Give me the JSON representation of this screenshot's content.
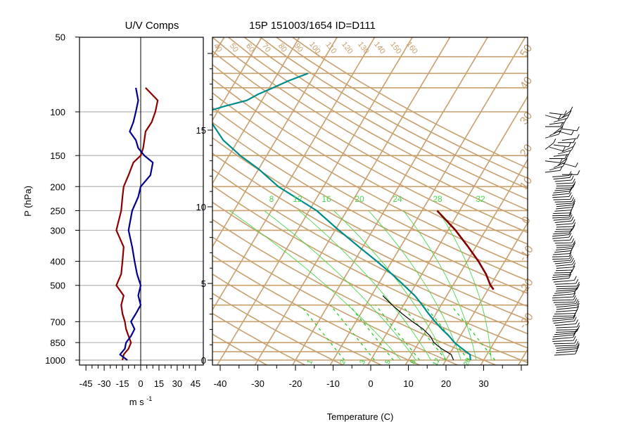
{
  "left_panel": {
    "title": "U/V Comps",
    "ylabel": "P (hPa)",
    "xlabel_base": "m s",
    "xlabel_sup": "-1",
    "x_ticks": [
      "-45",
      "-30",
      "-15",
      "0",
      "15",
      "30",
      "45"
    ],
    "x_range": [
      -51,
      51
    ],
    "p_range": [
      1000,
      50
    ],
    "p_ticks": [
      "50",
      "100",
      "150",
      "200",
      "250",
      "300",
      "400",
      "500",
      "700",
      "850",
      "1000"
    ],
    "grid_pressures": [
      100,
      150,
      200,
      250,
      300,
      400,
      500,
      700,
      850,
      1000
    ],
    "colors": {
      "u_series": "#8b0000",
      "v_series": "#00008b",
      "grid": "#b4b4b4"
    }
  },
  "main_panel": {
    "title": "15P 151003/1654 ID=D111",
    "xlabel": "Temperature (C)",
    "x_ticks": [
      "-40",
      "-30",
      "-20",
      "-10",
      "0",
      "10",
      "20",
      "30"
    ],
    "height_ticks": [
      "0",
      "5",
      "10",
      "15"
    ],
    "dry_adiabat_labels": [
      "40",
      "50",
      "60",
      "70",
      "80",
      "90",
      "100",
      "110",
      "120",
      "130",
      "140",
      "150",
      "160"
    ],
    "right_edge_labels": [
      "50",
      "40",
      "30",
      "20",
      "10",
      "0",
      "-10",
      "-20",
      "-30"
    ],
    "moist_adiabat_labels": [
      "8",
      "12",
      "16",
      "20",
      "24",
      "28",
      "32"
    ],
    "mixing_ratio_labels": [
      "1",
      "2",
      "3",
      "5",
      "8",
      "12",
      "20"
    ],
    "colors": {
      "isotherm": "#c8a06e",
      "temperature": "#008b8b",
      "dewpoint": "#000000",
      "parcel": "#800000",
      "moist_adiabat": "#4cd64c",
      "mixing_ratio": "#22cc22"
    }
  },
  "chart_data": [
    {
      "type": "line",
      "title": "U/V Comps",
      "xlabel": "m s-1",
      "ylabel": "P (hPa)",
      "xlim": [
        -51,
        51
      ],
      "ylim": [
        1000,
        50
      ],
      "series": [
        {
          "pressure": [
            1000,
            950,
            900,
            850,
            800,
            750,
            700,
            650,
            600,
            550,
            500,
            450,
            400,
            350,
            300,
            250,
            220,
            200,
            180,
            160,
            150,
            140,
            130,
            120,
            110,
            100,
            90,
            80
          ],
          "values": [
            -15,
            -14,
            -10,
            -8,
            -10,
            -12,
            -13,
            -15,
            -16,
            -14,
            -20,
            -16,
            -15,
            -14,
            -20,
            -16,
            -15,
            -14,
            -10,
            -6,
            0,
            2,
            3,
            4,
            9,
            12,
            14,
            4
          ]
        },
        {
          "pressure": [
            1000,
            950,
            900,
            850,
            800,
            750,
            700,
            650,
            600,
            550,
            500,
            450,
            400,
            350,
            300,
            250,
            220,
            200,
            180,
            160,
            150,
            140,
            130,
            120,
            110,
            100,
            90,
            80
          ],
          "values": [
            -11,
            -17,
            -13,
            -12,
            -8,
            -5,
            -8,
            -4,
            0,
            -2,
            0,
            -3,
            -5,
            -7,
            -10,
            -7,
            -2,
            0,
            8,
            10,
            3,
            -2,
            -4,
            -9,
            -6,
            -4,
            -2,
            -4
          ]
        }
      ]
    },
    {
      "type": "line",
      "title": "15P 151003/1654 ID=D111",
      "xlabel": "Temperature (C)",
      "xlim": [
        -43,
        40
      ],
      "ylim": [
        1050,
        50
      ],
      "series": [
        {
          "pressure": [
            1000,
            950,
            900,
            850,
            800,
            750,
            700,
            650,
            600,
            550,
            500,
            450,
            400,
            350,
            300,
            250,
            200,
            170,
            150,
            130,
            110,
            100,
            95,
            90,
            85,
            80,
            75,
            70
          ],
          "values": [
            26.5,
            25.5,
            22.5,
            19.5,
            17,
            14,
            11,
            8,
            5,
            1.5,
            -3,
            -8,
            -14,
            -21,
            -29,
            -38,
            -52,
            -60,
            -67,
            -74,
            -80,
            -83,
            -79,
            -74,
            -72,
            -69,
            -66,
            -62
          ]
        },
        {
          "pressure": [
            1000,
            950,
            900,
            850,
            800,
            750,
            700,
            650,
            600,
            550
          ],
          "values": [
            22,
            20.5,
            17,
            14,
            12,
            9,
            5,
            1,
            -3,
            -7
          ]
        },
        {
          "pressure": [
            520,
            500,
            450,
            400,
            350,
            300,
            250
          ],
          "values": [
            21.5,
            20,
            17,
            13,
            8,
            2,
            -6
          ]
        }
      ]
    }
  ]
}
